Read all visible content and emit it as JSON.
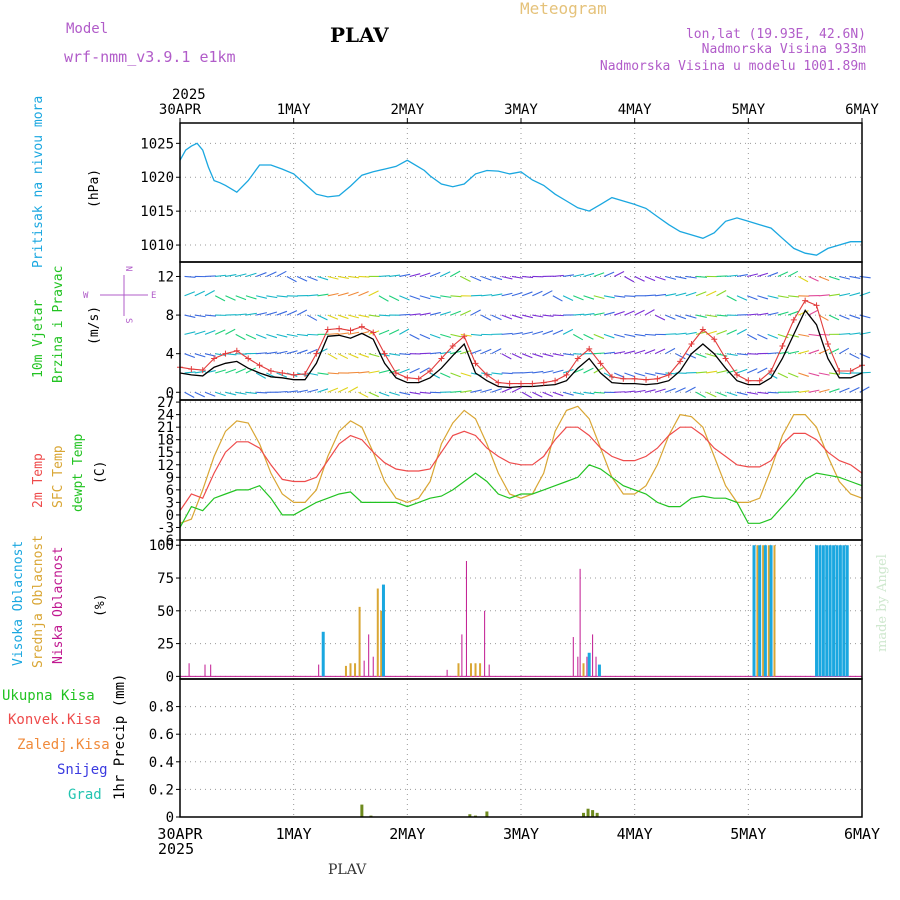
{
  "header": {
    "model_label": "Model",
    "model_name": "wrf-nmm_v3.9.1 e1km",
    "station": "PLAV",
    "title": "Meteogram",
    "coords": "lon,lat (19.93E, 42.6N)",
    "altitude": "Nadmorska Visina 933m",
    "model_altitude": "Nadmorska Visina u modelu 1001.89m",
    "watermark": "made by Angel",
    "footer_station": "PLAV"
  },
  "time_axis": {
    "top_year": "2025",
    "bottom_year": "2025",
    "ticks": [
      "30APR",
      "1MAY",
      "2MAY",
      "3MAY",
      "4MAY",
      "5MAY",
      "6MAY"
    ]
  },
  "panels": {
    "pressure": {
      "label": "Pritisak na nivou mora",
      "unit": "(hPa)"
    },
    "wind": {
      "label1": "10m Vjetar",
      "label2": "Brzina i Pravac",
      "unit": "(m/s)",
      "compass": {
        "n": "N",
        "s": "S",
        "w": "W",
        "e": "E"
      }
    },
    "temp": {
      "label1": "2m Temp",
      "label2": "SFC Temp",
      "label3": "dewpt Temp",
      "unit": "(C)"
    },
    "cloud": {
      "label1": "Visoka Oblacnost",
      "label2": "Srednja Oblacnost",
      "label3": "Niska Oblacnost",
      "unit": "(%)"
    },
    "precip": {
      "legend": [
        "Ukupna Kisa",
        "Konvek.Kisa",
        "Zaledj.Kisa",
        "Snijeg",
        "Grad"
      ],
      "unit": "1hr Precip (mm)"
    }
  },
  "colors": {
    "pressure": "#1aa7e0",
    "wind_speed": "#000000",
    "gust": "#e23c3c",
    "t2m": "#ee4b4b",
    "sfc": "#d9a634",
    "dew": "#22c322",
    "cloud_high": "#1aa7e0",
    "cloud_mid": "#d9a634",
    "cloud_low": "#c01890",
    "rain": "#6e8a1e",
    "model_label": "#b15cc9"
  },
  "chart_data": [
    {
      "type": "line",
      "name": "pressure",
      "ylim": [
        1007.5,
        1028
      ],
      "yticks": [
        1010,
        1015,
        1020,
        1025
      ],
      "x": [
        0,
        0.05,
        0.1,
        0.15,
        0.2,
        0.25,
        0.3,
        0.35,
        0.4,
        0.5,
        0.6,
        0.7,
        0.8,
        0.9,
        1.0,
        1.1,
        1.2,
        1.3,
        1.4,
        1.5,
        1.6,
        1.7,
        1.8,
        1.9,
        2.0,
        2.1,
        2.15,
        2.2,
        2.3,
        2.4,
        2.5,
        2.6,
        2.7,
        2.8,
        2.9,
        3.0,
        3.1,
        3.2,
        3.3,
        3.4,
        3.5,
        3.6,
        3.7,
        3.8,
        3.9,
        4.0,
        4.1,
        4.2,
        4.3,
        4.4,
        4.5,
        4.6,
        4.7,
        4.8,
        4.9,
        5.0,
        5.1,
        5.2,
        5.3,
        5.4,
        5.5,
        5.6,
        5.7,
        5.8,
        5.9,
        6.0
      ],
      "y": [
        1022.5,
        1024,
        1024.6,
        1025,
        1024,
        1021.5,
        1019.5,
        1019.2,
        1018.8,
        1017.8,
        1019.5,
        1021.8,
        1021.8,
        1021.2,
        1020.5,
        1019,
        1017.5,
        1017.1,
        1017.3,
        1018.7,
        1020.3,
        1020.8,
        1021.2,
        1021.6,
        1022.5,
        1021.5,
        1021,
        1020.2,
        1019,
        1018.6,
        1019,
        1020.5,
        1021,
        1020.9,
        1020.5,
        1020.8,
        1019.6,
        1018.8,
        1017.5,
        1016.5,
        1015.5,
        1015,
        1016,
        1017,
        1016.5,
        1016,
        1015.4,
        1014.2,
        1013,
        1012,
        1011.5,
        1011,
        1011.8,
        1013.5,
        1014,
        1013.5,
        1013,
        1012.5,
        1011,
        1009.5,
        1008.8,
        1008.5,
        1009.5,
        1010,
        1010.5,
        1010.5
      ],
      "series_name": ""
    },
    {
      "type": "line",
      "name": "wind",
      "ylim": [
        -0.8,
        13.5
      ],
      "yticks": [
        0,
        4,
        8,
        12
      ],
      "x": [
        0,
        0.1,
        0.2,
        0.3,
        0.4,
        0.5,
        0.6,
        0.7,
        0.8,
        0.9,
        1.0,
        1.1,
        1.2,
        1.3,
        1.4,
        1.5,
        1.6,
        1.7,
        1.8,
        1.9,
        2.0,
        2.1,
        2.2,
        2.3,
        2.4,
        2.5,
        2.6,
        2.7,
        2.8,
        2.9,
        3.0,
        3.1,
        3.2,
        3.3,
        3.4,
        3.5,
        3.6,
        3.7,
        3.8,
        3.9,
        4.0,
        4.1,
        4.2,
        4.3,
        4.4,
        4.5,
        4.6,
        4.7,
        4.8,
        4.9,
        5.0,
        5.1,
        5.2,
        5.3,
        5.4,
        5.5,
        5.6,
        5.7,
        5.8,
        5.9,
        6.0
      ],
      "speed": [
        2,
        1.8,
        1.7,
        2.6,
        3,
        3.2,
        2.5,
        2,
        1.6,
        1.5,
        1.3,
        1.3,
        3,
        5.8,
        5.9,
        5.6,
        6.1,
        5.5,
        3,
        1.5,
        1,
        1,
        1.5,
        2.5,
        3.8,
        5,
        2,
        1.2,
        0.6,
        0.5,
        0.6,
        0.6,
        0.7,
        0.8,
        1.2,
        2.5,
        3.5,
        2,
        1,
        0.9,
        0.9,
        0.8,
        0.9,
        1.2,
        2.2,
        4,
        5,
        4,
        2.5,
        1.2,
        0.8,
        0.8,
        1.5,
        3.5,
        6,
        8.5,
        7,
        3.5,
        1.5,
        1.5,
        2
      ],
      "gust": [
        2.6,
        2.4,
        2.3,
        3.5,
        4,
        4.3,
        3.5,
        2.8,
        2.2,
        2,
        1.8,
        1.9,
        4,
        6.5,
        6.6,
        6.4,
        6.8,
        6.2,
        4,
        2,
        1.5,
        1.4,
        2.2,
        3.5,
        4.8,
        5.8,
        3,
        1.8,
        1,
        0.9,
        0.9,
        0.9,
        1,
        1.2,
        1.8,
        3.5,
        4.5,
        3,
        1.6,
        1.4,
        1.4,
        1.3,
        1.4,
        1.8,
        3.2,
        5,
        6.5,
        5.5,
        3.5,
        1.8,
        1.2,
        1.2,
        2.2,
        4.8,
        7.5,
        9.5,
        9,
        5,
        2.2,
        2.2,
        2.8
      ],
      "series_name": ""
    },
    {
      "type": "line",
      "name": "temperature",
      "ylim": [
        -6,
        27.5
      ],
      "yticks": [
        -6,
        -3,
        0,
        3,
        6,
        9,
        12,
        15,
        18,
        21,
        24,
        27
      ],
      "x": [
        0,
        0.1,
        0.2,
        0.3,
        0.4,
        0.5,
        0.6,
        0.7,
        0.8,
        0.9,
        1.0,
        1.1,
        1.2,
        1.3,
        1.4,
        1.5,
        1.6,
        1.7,
        1.8,
        1.9,
        2.0,
        2.1,
        2.2,
        2.3,
        2.4,
        2.5,
        2.6,
        2.7,
        2.8,
        2.9,
        3.0,
        3.1,
        3.2,
        3.3,
        3.4,
        3.5,
        3.6,
        3.7,
        3.8,
        3.9,
        4.0,
        4.1,
        4.2,
        4.3,
        4.4,
        4.5,
        4.6,
        4.7,
        4.8,
        4.9,
        5.0,
        5.1,
        5.2,
        5.3,
        5.4,
        5.5,
        5.6,
        5.7,
        5.8,
        5.9,
        6.0
      ],
      "t2m": [
        1,
        5,
        4,
        10,
        15,
        17.5,
        17.5,
        16,
        12,
        8.5,
        8,
        8,
        9,
        13,
        17,
        19,
        18,
        15,
        12.5,
        11,
        10.5,
        10.5,
        11,
        15,
        19,
        20,
        19,
        16,
        14,
        12.5,
        12,
        12,
        14,
        18,
        21,
        21,
        19,
        16,
        14,
        13,
        13,
        14,
        16,
        19,
        21,
        21,
        19,
        16,
        14,
        12,
        11.5,
        11.5,
        13,
        17,
        19.5,
        19.5,
        18,
        15,
        13,
        12,
        10
      ],
      "sfc": [
        -2,
        -1,
        6,
        14,
        20,
        22.5,
        22,
        17,
        10,
        5,
        3,
        3,
        6,
        14,
        20,
        22.5,
        21,
        15,
        8,
        4,
        3,
        4,
        8,
        17,
        22,
        25,
        23,
        17,
        10,
        5,
        4,
        5,
        10,
        20,
        25,
        26,
        23,
        16,
        9,
        5,
        5,
        7,
        12,
        19,
        24,
        23.5,
        21,
        14,
        7,
        3,
        3,
        4,
        11,
        19,
        24,
        24,
        21,
        14,
        8,
        5,
        4
      ],
      "dew": [
        -3,
        2,
        1,
        4,
        5,
        6,
        6,
        7,
        4,
        0,
        0,
        1.5,
        3,
        4,
        5,
        5.5,
        3,
        3,
        3,
        3,
        2,
        3,
        4,
        4.5,
        6,
        8,
        10,
        8,
        5,
        4,
        5,
        5,
        6,
        7,
        8,
        9,
        12,
        11,
        9,
        7,
        6,
        5,
        3,
        2,
        2,
        4,
        4.5,
        4,
        4,
        3,
        -2,
        -2,
        -1,
        2,
        5,
        8.5,
        10,
        9.5,
        9,
        8,
        7
      ],
      "series_name": ""
    },
    {
      "type": "bar",
      "name": "cloud",
      "ylim": [
        -2,
        104
      ],
      "yticks": [
        0,
        25,
        50,
        75,
        100
      ],
      "bars": [
        {
          "t": 0.08,
          "h": 0,
          "m": 0,
          "l": 10
        },
        {
          "t": 0.22,
          "h": 0,
          "m": 0,
          "l": 9
        },
        {
          "t": 0.27,
          "h": 0,
          "m": 0,
          "l": 9
        },
        {
          "t": 1.22,
          "h": 0,
          "m": 0,
          "l": 9
        },
        {
          "t": 1.26,
          "h": 34,
          "m": 0,
          "l": 0
        },
        {
          "t": 1.46,
          "h": 0,
          "m": 8,
          "l": 0
        },
        {
          "t": 1.5,
          "h": 0,
          "m": 10,
          "l": 0
        },
        {
          "t": 1.54,
          "h": 0,
          "m": 10,
          "l": 0
        },
        {
          "t": 1.58,
          "h": 0,
          "m": 53,
          "l": 0
        },
        {
          "t": 1.62,
          "h": 0,
          "m": 0,
          "l": 12
        },
        {
          "t": 1.66,
          "h": 0,
          "m": 0,
          "l": 32
        },
        {
          "t": 1.7,
          "h": 0,
          "m": 0,
          "l": 15
        },
        {
          "t": 1.74,
          "h": 0,
          "m": 67,
          "l": 0
        },
        {
          "t": 1.77,
          "h": 0,
          "m": 50,
          "l": 0
        },
        {
          "t": 1.79,
          "h": 70,
          "m": 0,
          "l": 0
        },
        {
          "t": 2.35,
          "h": 0,
          "m": 0,
          "l": 5
        },
        {
          "t": 2.45,
          "h": 0,
          "m": 10,
          "l": 0
        },
        {
          "t": 2.48,
          "h": 0,
          "m": 0,
          "l": 32
        },
        {
          "t": 2.52,
          "h": 0,
          "m": 0,
          "l": 88
        },
        {
          "t": 2.56,
          "h": 0,
          "m": 10,
          "l": 0
        },
        {
          "t": 2.6,
          "h": 0,
          "m": 10,
          "l": 0
        },
        {
          "t": 2.64,
          "h": 0,
          "m": 10,
          "l": 0
        },
        {
          "t": 2.68,
          "h": 0,
          "m": 0,
          "l": 50
        },
        {
          "t": 2.72,
          "h": 0,
          "m": 0,
          "l": 9
        },
        {
          "t": 3.46,
          "h": 0,
          "m": 0,
          "l": 30
        },
        {
          "t": 3.5,
          "h": 0,
          "m": 0,
          "l": 15
        },
        {
          "t": 3.52,
          "h": 0,
          "m": 0,
          "l": 82
        },
        {
          "t": 3.55,
          "h": 0,
          "m": 10,
          "l": 0
        },
        {
          "t": 3.58,
          "h": 0,
          "m": 0,
          "l": 15
        },
        {
          "t": 3.6,
          "h": 18,
          "m": 0,
          "l": 0
        },
        {
          "t": 3.63,
          "h": 0,
          "m": 0,
          "l": 32
        },
        {
          "t": 3.66,
          "h": 0,
          "m": 0,
          "l": 15
        },
        {
          "t": 3.69,
          "h": 9,
          "m": 0,
          "l": 0
        },
        {
          "t": 5.05,
          "h": 100,
          "m": 0,
          "l": 0
        },
        {
          "t": 5.08,
          "h": 0,
          "m": 100,
          "l": 0
        },
        {
          "t": 5.1,
          "h": 100,
          "m": 0,
          "l": 0
        },
        {
          "t": 5.13,
          "h": 0,
          "m": 100,
          "l": 0
        },
        {
          "t": 5.15,
          "h": 100,
          "m": 0,
          "l": 0
        },
        {
          "t": 5.18,
          "h": 0,
          "m": 100,
          "l": 0
        },
        {
          "t": 5.2,
          "h": 100,
          "m": 0,
          "l": 0
        },
        {
          "t": 5.23,
          "h": 0,
          "m": 100,
          "l": 0
        },
        {
          "t": 5.6,
          "h": 100,
          "m": 0,
          "l": 0
        },
        {
          "t": 5.63,
          "h": 100,
          "m": 0,
          "l": 0
        },
        {
          "t": 5.66,
          "h": 100,
          "m": 0,
          "l": 0
        },
        {
          "t": 5.69,
          "h": 100,
          "m": 0,
          "l": 0
        },
        {
          "t": 5.72,
          "h": 100,
          "m": 0,
          "l": 0
        },
        {
          "t": 5.75,
          "h": 100,
          "m": 0,
          "l": 0
        },
        {
          "t": 5.78,
          "h": 100,
          "m": 0,
          "l": 0
        },
        {
          "t": 5.81,
          "h": 100,
          "m": 0,
          "l": 0
        },
        {
          "t": 5.84,
          "h": 100,
          "m": 0,
          "l": 0
        },
        {
          "t": 5.87,
          "h": 100,
          "m": 0,
          "l": 0
        }
      ]
    },
    {
      "type": "bar",
      "name": "precip",
      "ylim": [
        0,
        1.0
      ],
      "yticks": [
        0,
        0.2,
        0.4,
        0.6,
        0.8
      ],
      "bars": [
        {
          "t": 1.6,
          "v": 0.09
        },
        {
          "t": 1.68,
          "v": 0.01
        },
        {
          "t": 2.55,
          "v": 0.02
        },
        {
          "t": 2.6,
          "v": 0.01
        },
        {
          "t": 2.7,
          "v": 0.04
        },
        {
          "t": 3.55,
          "v": 0.03
        },
        {
          "t": 3.59,
          "v": 0.06
        },
        {
          "t": 3.63,
          "v": 0.05
        },
        {
          "t": 3.67,
          "v": 0.03
        }
      ]
    }
  ]
}
